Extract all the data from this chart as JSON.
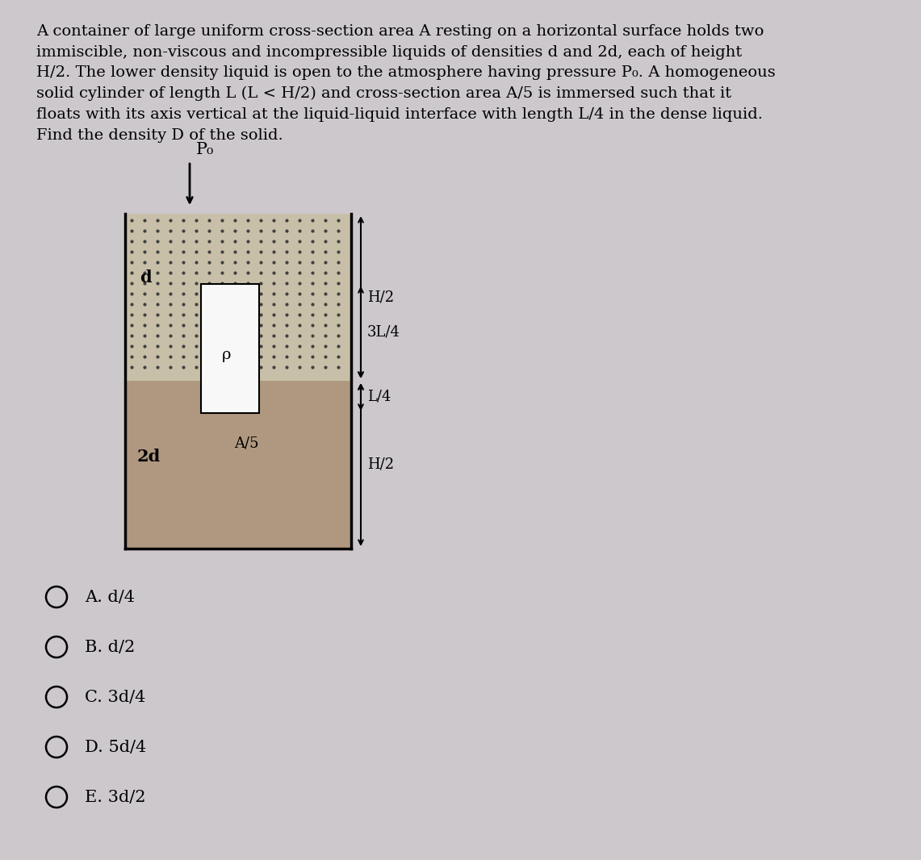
{
  "background_color": "#ccc8cc",
  "question_text": "A container of large uniform cross-section area A resting on a horizontal surface holds two\nimmiscible, non-viscous and incompressible liquids of densities d and 2d, each of height\nH/2. The lower density liquid is open to the atmosphere having pressure P₀. A homogeneous\nsolid cylinder of length L (L < H/2) and cross-section area A/5 is immersed such that it\nfloats with its axis vertical at the liquid-liquid interface with length L/4 in the dense liquid.\nFind the density D of the solid.",
  "options": [
    "A. d/4",
    "B. d/2",
    "C. 3d/4",
    "D. 5d/4",
    "E. 3d/2"
  ],
  "upper_liquid_dot_bg": "#c8bfa8",
  "lower_liquid_color": "#b09880",
  "cylinder_color": "#f8f8f8",
  "label_d": "d",
  "label_2d": "2d",
  "label_rho": "ρ",
  "label_A5": "A/5",
  "label_H2_upper": "H/2",
  "label_H2_lower": "H/2",
  "label_3L4": "3L/4",
  "label_L4": "L/4",
  "label_P0": "P₀",
  "text_fontsize": 14,
  "label_fontsize": 13,
  "option_fontsize": 15
}
